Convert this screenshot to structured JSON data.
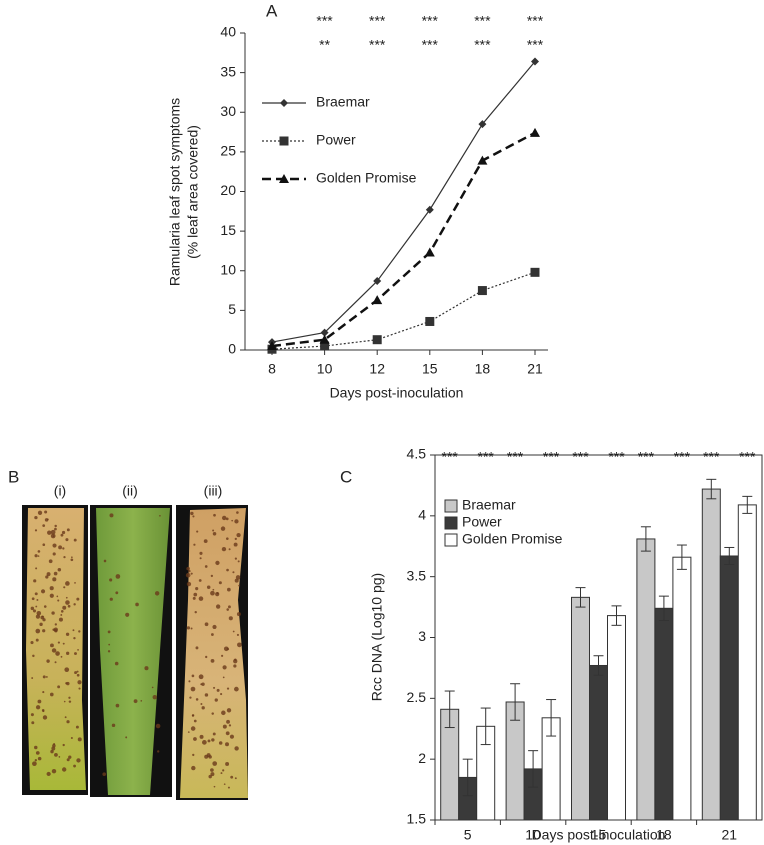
{
  "panel_labels": [
    "A",
    "B",
    "C"
  ],
  "leaf_labels": [
    "(i)",
    "(ii)",
    "(iii)"
  ],
  "chart_data": [
    {
      "type": "line",
      "y_label": [
        "Ramularia leaf spot symptoms",
        "(% leaf area covered)"
      ],
      "x_label": "Days post-inoculation",
      "categories": [
        "8",
        "10",
        "12",
        "15",
        "18",
        "21"
      ],
      "ylim": [
        0,
        40
      ],
      "yticks": [
        0,
        5,
        10,
        15,
        20,
        25,
        30,
        35,
        40
      ],
      "significance": [
        [
          null,
          "***",
          "***",
          "***",
          "***",
          "***"
        ],
        [
          null,
          "**",
          "***",
          "***",
          "***",
          "***"
        ]
      ],
      "series": [
        {
          "name": "Braemar",
          "color": "#333333",
          "dash": "none",
          "marker": "diamond",
          "values": [
            1.0,
            2.2,
            8.7,
            17.7,
            28.5,
            36.4
          ]
        },
        {
          "name": "Power",
          "color": "#333333",
          "dash": "2,2",
          "marker": "square",
          "values": [
            0.1,
            0.5,
            1.3,
            3.6,
            7.5,
            9.8
          ]
        },
        {
          "name": "Golden Promise",
          "color": "#111111",
          "dash": "9,5",
          "marker": "triangle",
          "values": [
            0.5,
            1.3,
            6.3,
            12.3,
            23.9,
            27.4
          ]
        }
      ]
    },
    {
      "type": "bar",
      "y_label": "Rcc DNA (Log10 pg)",
      "x_label": "Days post-inoculation",
      "categories": [
        "5",
        "10",
        "15",
        "18",
        "21"
      ],
      "ylim": [
        1.5,
        4.5
      ],
      "yticks": [
        1.5,
        2,
        2.5,
        3,
        3.5,
        4,
        4.5
      ],
      "series": [
        {
          "name": "Braemar",
          "color": "#c8c8c8",
          "values": [
            2.41,
            2.47,
            3.33,
            3.81,
            4.22
          ],
          "errors": [
            0.15,
            0.15,
            0.08,
            0.1,
            0.08
          ],
          "stars": [
            "***",
            "***",
            "***",
            "***",
            "***"
          ]
        },
        {
          "name": "Power",
          "color": "#3a3a3a",
          "values": [
            1.85,
            1.92,
            2.77,
            3.24,
            3.67
          ],
          "errors": [
            0.15,
            0.15,
            0.08,
            0.1,
            0.07
          ]
        },
        {
          "name": "Golden Promise",
          "color": "#ffffff",
          "values": [
            2.27,
            2.34,
            3.18,
            3.66,
            4.09
          ],
          "errors": [
            0.15,
            0.15,
            0.08,
            0.1,
            0.07
          ],
          "stars": [
            "***",
            "***",
            "***",
            "***",
            "***"
          ]
        }
      ]
    }
  ]
}
